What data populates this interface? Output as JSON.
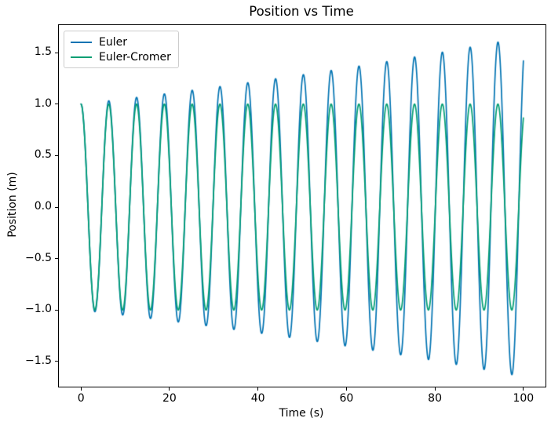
{
  "chart_data": {
    "type": "line",
    "title": "Position vs Time",
    "xlabel": "Time (s)",
    "ylabel": "Position (m)",
    "xlim": [
      -5,
      105
    ],
    "ylim": [
      -1.744,
      1.767
    ],
    "x_ticks": [
      0,
      20,
      40,
      60,
      80,
      100
    ],
    "x_tick_labels": [
      "0",
      "20",
      "40",
      "60",
      "80",
      "100"
    ],
    "y_ticks": [
      -1.5,
      -1.0,
      -0.5,
      0.0,
      0.5,
      1.0,
      1.5
    ],
    "y_tick_labels": [
      "−1.5",
      "−1.0",
      "−0.5",
      "0.0",
      "0.5",
      "1.0",
      "1.5"
    ],
    "grid": false,
    "legend_position": "upper left",
    "simulation": {
      "model": "simple harmonic oscillator",
      "x0": 1.0,
      "v0": 0.0,
      "omega": 1.0,
      "dt": 0.01,
      "t_end": 100.0,
      "period": 6.283
    },
    "series": [
      {
        "name": "Euler",
        "color": "#0173b2",
        "method": "euler",
        "line_width": 1.7,
        "start_value": 1.0,
        "end_value": 1.42,
        "min_value": -1.63,
        "peak_times": [
          0.0,
          6.28,
          12.57,
          18.85,
          25.13,
          31.42,
          37.7,
          43.98,
          50.27,
          56.55,
          62.83,
          69.12,
          75.4,
          81.68,
          87.96,
          94.25
        ],
        "peak_values": [
          1.0,
          1.032,
          1.065,
          1.099,
          1.134,
          1.17,
          1.207,
          1.246,
          1.286,
          1.327,
          1.369,
          1.413,
          1.458,
          1.504,
          1.552,
          1.602
        ]
      },
      {
        "name": "Euler-Cromer",
        "color": "#029e73",
        "method": "euler-cromer",
        "line_width": 1.7,
        "start_value": 1.0,
        "end_value": 0.86,
        "min_value": -1.0,
        "amplitude": 1.0
      }
    ]
  }
}
